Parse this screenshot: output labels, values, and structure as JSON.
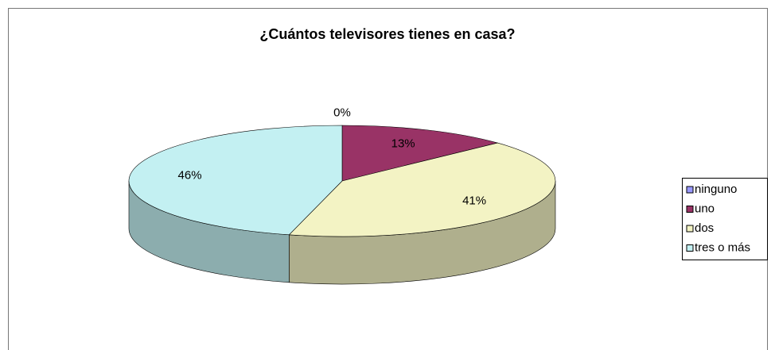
{
  "chart_data": {
    "type": "pie",
    "title": "¿Cuántos televisores tienes en casa?",
    "categories": [
      "ninguno",
      "uno",
      "dos",
      "tres o más"
    ],
    "values": [
      0,
      13,
      41,
      46
    ],
    "value_labels": [
      "0%",
      "13%",
      "41%",
      "46%"
    ],
    "colors": [
      "#9999ff",
      "#993366",
      "#f3f3c4",
      "#c3f0f2"
    ],
    "legend": "right"
  }
}
